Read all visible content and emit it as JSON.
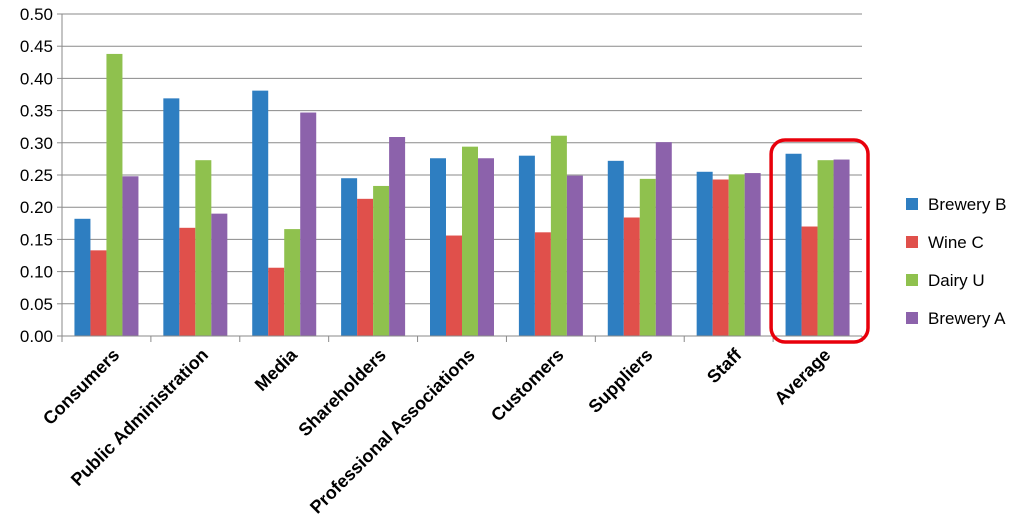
{
  "chart_data": {
    "type": "bar",
    "title": "",
    "xlabel": "",
    "ylabel": "",
    "ylim": [
      0,
      0.5
    ],
    "yticks": [
      "0.00",
      "0.05",
      "0.10",
      "0.15",
      "0.20",
      "0.25",
      "0.30",
      "0.35",
      "0.40",
      "0.45",
      "0.50"
    ],
    "grid": true,
    "legend_position": "right",
    "categories": [
      "Consumers",
      "Public Administration",
      "Media",
      "Shareholders",
      "Professional Associations",
      "Customers",
      "Suppliers",
      "Staff",
      "Average"
    ],
    "series": [
      {
        "name": "Brewery B",
        "color": "#2E7EC1",
        "values": [
          0.182,
          0.369,
          0.381,
          0.245,
          0.276,
          0.28,
          0.272,
          0.255,
          0.283
        ]
      },
      {
        "name": "Wine C",
        "color": "#E0504B",
        "values": [
          0.133,
          0.168,
          0.106,
          0.213,
          0.156,
          0.161,
          0.184,
          0.243,
          0.17
        ]
      },
      {
        "name": "Dairy U",
        "color": "#8FC14E",
        "values": [
          0.438,
          0.273,
          0.166,
          0.233,
          0.294,
          0.311,
          0.244,
          0.251,
          0.273
        ]
      },
      {
        "name": "Brewery A",
        "color": "#8C62AB",
        "values": [
          0.248,
          0.19,
          0.347,
          0.309,
          0.276,
          0.249,
          0.301,
          0.253,
          0.274
        ]
      }
    ],
    "highlight": {
      "category": "Average",
      "color": "#E8000B"
    }
  }
}
